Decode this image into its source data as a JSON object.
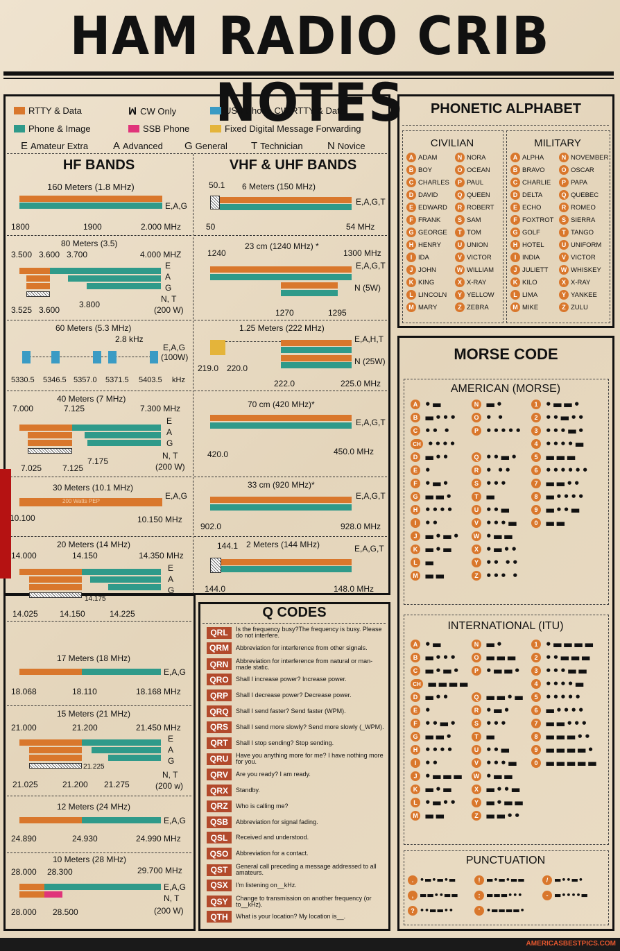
{
  "title": "HAM RADIO CRIB NOTES",
  "legend": {
    "rtty": "RTTY & Data",
    "cw": "CW Only",
    "cw_icon": "morse-wave-icon",
    "usb": "USB Phone,CW,RTTY & Data",
    "phone_image": "Phone & Image",
    "ssb": "SSB Phone",
    "fixed": "Fixed Digital Message Forwarding",
    "colors": {
      "rtty": "#d9772c",
      "phone_image": "#2f9a8a",
      "usb": "#3a9bc4",
      "ssb": "#e0347a",
      "fixed": "#e4b43a"
    }
  },
  "licenses": [
    {
      "code": "E",
      "name": "Amateur Extra"
    },
    {
      "code": "A",
      "name": "Advanced"
    },
    {
      "code": "G",
      "name": "General"
    },
    {
      "code": "T",
      "name": "Technician"
    },
    {
      "code": "N",
      "name": "Novice"
    }
  ],
  "hf_title": "HF BANDS",
  "vhf_title": "VHF & UHF BANDS",
  "hf": {
    "b160": {
      "title": "160 Meters (1.8 MHz)",
      "lic": "E,A,G",
      "l1": "1800",
      "l2": "1900",
      "l3": "2.000 MHz"
    },
    "b80": {
      "title": "80 Meters (3.5)",
      "t1": "3.500",
      "t2": "3.600",
      "t3": "3.700",
      "t4": "4.000 MHZ",
      "e": "E",
      "a": "A",
      "g": "G",
      "nt": "N, T",
      "w": "(200 W)",
      "b1": "3.525",
      "b2": "3.600",
      "b3": "3.800"
    },
    "b60": {
      "title": "60 Meters (5.3 MHz)",
      "khz": "2.8 kHz",
      "lic": "E,A,G",
      "w": "(100W)",
      "f1": "5330.5",
      "f2": "5346.5",
      "f3": "5357.0",
      "f4": "5371.5",
      "f5": "5403.5",
      "unit": "kHz"
    },
    "b40": {
      "title": "40 Meters (7 MHz)",
      "t1": "7.000",
      "t2": "7.125",
      "t3": "7.300 MHz",
      "e": "E",
      "a": "A",
      "g": "G",
      "nt": "N, T",
      "w": "(200 W)",
      "b1": "7.025",
      "b2": "7.125",
      "b3": "7.175"
    },
    "b30": {
      "title": "30 Meters (10.1 MHz)",
      "lic": "E,A,G",
      "pep": "200 Watts PEP",
      "l1": "10.100",
      "l2": "10.150 MHz"
    },
    "b20": {
      "title": "20 Meters (14 MHz)",
      "t1": "14.000",
      "t2": "14.150",
      "t3": "14.350 MHz",
      "e": "E",
      "a": "A",
      "g": "G",
      "m": "14.175",
      "b1": "14.025",
      "b2": "14.150",
      "b3": "14.225"
    },
    "b17": {
      "title": "17 Meters (18 MHz)",
      "lic": "E,A,G",
      "l1": "18.068",
      "l2": "18.110",
      "l3": "18.168 MHz"
    },
    "b15": {
      "title": "15 Meters (21 MHz)",
      "t1": "21.000",
      "t2": "21.200",
      "t3": "21.450 MHz",
      "e": "E",
      "a": "A",
      "g": "G",
      "m": "21.225",
      "nt": "N, T",
      "w": "(200 w)",
      "b1": "21.025",
      "b2": "21.200",
      "b3": "21.275"
    },
    "b12": {
      "title": "12 Meters (24 MHz)",
      "lic": "E,A,G",
      "l1": "24.890",
      "l2": "24.930",
      "l3": "24.990 MHz"
    },
    "b10": {
      "title": "10 Meters (28 MHz)",
      "t1": "28.000",
      "t2": "28.300",
      "t3": "29.700 MHz",
      "lic": "E,A,G",
      "nt": "N, T",
      "w": "(200 W)",
      "b1": "28.000",
      "b2": "28.500"
    }
  },
  "vhf": {
    "b6": {
      "title": "6 Meters (150 MHz)",
      "t1": "50.1",
      "lic": "E,A,G,T",
      "l1": "50",
      "l2": "54 MHz"
    },
    "b23": {
      "title": "23 cm (1240 MHz) *",
      "t1": "1240",
      "t2": "1300 MHz",
      "lic": "E,A,G,T",
      "n": "N (5W)",
      "b1": "1270",
      "b2": "1295"
    },
    "b125": {
      "title": "1.25 Meters (222 MHz)",
      "lic": "E,A,H,T",
      "n": "N (25W)",
      "a1": "219.0",
      "a2": "220.0",
      "b1": "222.0",
      "b2": "225.0 MHz"
    },
    "b70": {
      "title": "70 cm (420 MHz)*",
      "lic": "E,A,G,T",
      "l1": "420.0",
      "l2": "450.0 MHz"
    },
    "b33": {
      "title": "33 cm (920 MHz)*",
      "lic": "E,A,G,T",
      "l1": "902.0",
      "l2": "928.0 MHz"
    },
    "b2": {
      "title": "2 Meters (144 MHz)",
      "t1": "144.1",
      "lic": "E,A,G,T",
      "l1": "144.0",
      "l2": "148.0 MHz"
    }
  },
  "phonetic": {
    "title": "PHONETIC ALPHABET",
    "civilian_title": "CIVILIAN",
    "military_title": "MILITARY",
    "civilian": [
      "ADAM",
      "BOY",
      "CHARLES",
      "DAVID",
      "EDWARD",
      "FRANK",
      "GEORGE",
      "HENRY",
      "IDA",
      "JOHN",
      "KING",
      "LINCOLN",
      "MARY",
      "NORA",
      "OCEAN",
      "PAUL",
      "QUEEN",
      "ROBERT",
      "SAM",
      "TOM",
      "UNION",
      "VICTOR",
      "WILLIAM",
      "X-RAY",
      "YELLOW",
      "ZEBRA"
    ],
    "military": [
      "ALPHA",
      "BRAVO",
      "CHARLIE",
      "DELTA",
      "ECHO",
      "FOXTROT",
      "GOLF",
      "HOTEL",
      "INDIA",
      "JULIETT",
      "KILO",
      "LIMA",
      "MIKE",
      "NOVEMBER",
      "OSCAR",
      "PAPA",
      "QUEBEC",
      "ROMEO",
      "SIERRA",
      "TANGO",
      "UNIFORM",
      "VICTOR",
      "WHISKEY",
      "X-RAY",
      "YANKEE",
      "ZULU"
    ]
  },
  "morse": {
    "title": "MORSE CODE",
    "american_title": "AMERICAN (MORSE)",
    "itu_title": "INTERNATIONAL (ITU)",
    "punct_title": "PUNCTUATION",
    "american": [
      [
        "A",
        "•▬"
      ],
      [
        "N",
        "▬•"
      ],
      [
        "1",
        "•▬▬•"
      ],
      [
        "B",
        "▬•••"
      ],
      [
        "O",
        "• •"
      ],
      [
        "2",
        "••▬••"
      ],
      [
        "C",
        "•• •"
      ],
      [
        "P",
        "•••••"
      ],
      [
        "3",
        "•••▬•"
      ],
      [
        "CH",
        "••••"
      ],
      [
        "Q",
        "••▬•"
      ],
      [
        "4",
        "••••▬"
      ],
      [
        "D",
        "▬••"
      ],
      [
        "R",
        "• ••"
      ],
      [
        "5",
        "▬▬▬"
      ],
      [
        "E",
        "•"
      ],
      [
        "S",
        "•••"
      ],
      [
        "6",
        "••••••"
      ],
      [
        "F",
        "•▬•"
      ],
      [
        "T",
        "▬"
      ],
      [
        "7",
        "▬▬••"
      ],
      [
        "G",
        "▬▬•"
      ],
      [
        "U",
        "••▬"
      ],
      [
        "8",
        "▬••••"
      ],
      [
        "H",
        "••••"
      ],
      [
        "V",
        "•••▬"
      ],
      [
        "9",
        "▬••▬"
      ],
      [
        "I",
        "••"
      ],
      [
        "W",
        "•▬▬"
      ],
      [
        "0",
        "▬▬"
      ],
      [
        "J",
        "▬•▬•"
      ],
      [
        "X",
        "•▬••"
      ],
      [
        "K",
        "▬•▬"
      ],
      [
        "Y",
        "•• ••"
      ],
      [
        "L",
        "▬"
      ],
      [
        "Z",
        "••• •"
      ],
      [
        "M",
        "▬▬"
      ]
    ],
    "itu": [
      [
        "A",
        "•▬"
      ],
      [
        "N",
        "▬•"
      ],
      [
        "1",
        "•▬▬▬▬"
      ],
      [
        "B",
        "▬•••"
      ],
      [
        "O",
        "▬▬▬"
      ],
      [
        "2",
        "••▬▬▬"
      ],
      [
        "C",
        "▬•▬•"
      ],
      [
        "P",
        "•▬▬•"
      ],
      [
        "3",
        "•••▬▬"
      ],
      [
        "CH",
        "▬▬▬▬"
      ],
      [
        "Q",
        "▬▬•▬"
      ],
      [
        "4",
        "••••▬"
      ],
      [
        "D",
        "▬••"
      ],
      [
        "R",
        "•▬•"
      ],
      [
        "5",
        "•••••"
      ],
      [
        "E",
        "•"
      ],
      [
        "S",
        "•••"
      ],
      [
        "6",
        "▬••••"
      ],
      [
        "F",
        "••▬•"
      ],
      [
        "T",
        "▬"
      ],
      [
        "7",
        "▬▬•••"
      ],
      [
        "G",
        "▬▬•"
      ],
      [
        "U",
        "••▬"
      ],
      [
        "8",
        "▬▬▬••"
      ],
      [
        "H",
        "••••"
      ],
      [
        "V",
        "•••▬"
      ],
      [
        "9",
        "▬▬▬▬•"
      ],
      [
        "I",
        "••"
      ],
      [
        "W",
        "•▬▬"
      ],
      [
        "0",
        "▬▬▬▬▬"
      ],
      [
        "J",
        "•▬▬▬"
      ],
      [
        "X",
        "▬••▬"
      ],
      [
        "K",
        "▬•▬"
      ],
      [
        "Y",
        "▬•▬▬"
      ],
      [
        "L",
        "•▬••"
      ],
      [
        "Z",
        "▬▬••"
      ],
      [
        "M",
        "▬▬"
      ]
    ],
    "punctuation": [
      [
        ".",
        "•▬•▬•▬"
      ],
      [
        "!",
        "▬•▬•▬▬"
      ],
      [
        "/",
        "▬••▬•"
      ],
      [
        ",",
        "▬▬••▬▬"
      ],
      [
        ":",
        "▬▬▬•••"
      ],
      [
        "-",
        "▬••••▬"
      ],
      [
        "?",
        "••▬▬••"
      ],
      [
        "'",
        "•▬▬▬▬•"
      ]
    ]
  },
  "qcodes": {
    "title": "Q CODES",
    "items": [
      [
        "QRL",
        "Is the frequency busy?The frequency is busy. Please do not interfere."
      ],
      [
        "QRM",
        "Abbreviation for interference from other signals."
      ],
      [
        "QRN",
        "Abbreviation for interference from natural or man-made static."
      ],
      [
        "QRO",
        "Shall I increase power? Increase power."
      ],
      [
        "QRP",
        "Shall I decrease power? Decrease power."
      ],
      [
        "QRQ",
        "Shall I send faster? Send faster (WPM)."
      ],
      [
        "QRS",
        "Shall I send more slowly? Send more slowly (_WPM)."
      ],
      [
        "QRT",
        "Shall I stop sending? Stop sending."
      ],
      [
        "QRU",
        "Have you anything more for me? I have nothing more for you."
      ],
      [
        "QRV",
        "Are you ready? I am ready."
      ],
      [
        "QRX",
        "Standby."
      ],
      [
        "QRZ",
        "Who is calling me?"
      ],
      [
        "QSB",
        "Abbreviation for signal fading."
      ],
      [
        "QSL",
        "Received and understood."
      ],
      [
        "QSO",
        "Abbreviation for a contact."
      ],
      [
        "QST",
        "General call preceding a message addressed to all amateurs."
      ],
      [
        "QSX",
        "I'm listening on__kHz."
      ],
      [
        "QSY",
        "Change to transmission on another frequency (or to__kHz)."
      ],
      [
        "QTH",
        "What is your location? My location is__."
      ]
    ]
  },
  "watermark": "AMERICASBESTPICS.COM"
}
